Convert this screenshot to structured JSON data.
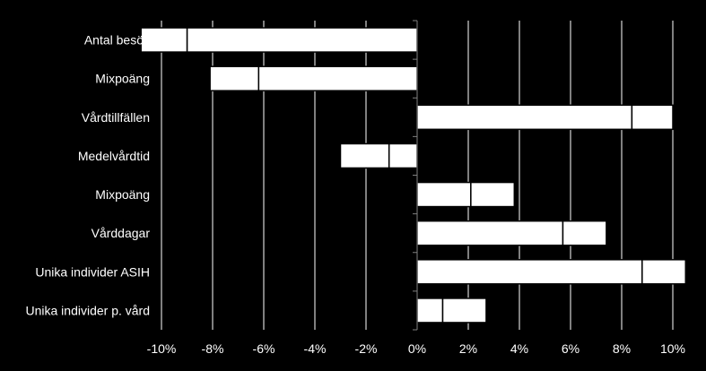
{
  "chart_data": {
    "type": "bar",
    "orientation": "horizontal",
    "stacked": true,
    "categories": [
      "Antal besök",
      "Mixpoäng",
      "Vårdtillfällen",
      "Medelvårdtid",
      "Mixpoäng",
      "Vårddagar",
      "Unika individer ASIH",
      "Unika individer p. vård"
    ],
    "series": [
      {
        "values": [
          -9.0,
          -6.2,
          8.4,
          -1.1,
          2.1,
          5.7,
          8.8,
          1.0
        ]
      },
      {
        "values": [
          -1.8,
          -1.9,
          1.6,
          -1.9,
          1.7,
          1.7,
          1.7,
          1.7
        ]
      }
    ],
    "xlim": [
      -10,
      10
    ],
    "x_ticks": [
      "-10%",
      "-8%",
      "-6%",
      "-4%",
      "-2%",
      "0%",
      "2%",
      "4%",
      "6%",
      "8%",
      "10%"
    ],
    "grid": true,
    "colors": {
      "background": "#000000",
      "bars": "#ffffff",
      "grid": "#ffffff"
    }
  }
}
